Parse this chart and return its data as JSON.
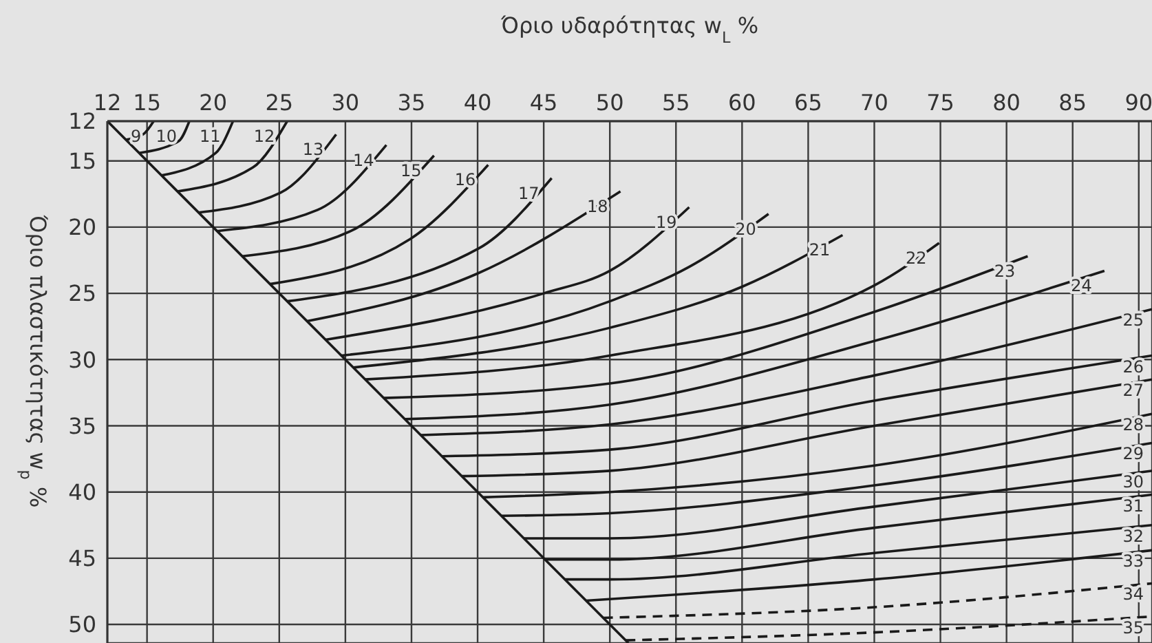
{
  "chart_data": {
    "type": "line",
    "xlabel": "Όριο υδαρότητας w$_{L}$ %",
    "ylabel": "Όριο πλαστικότητας w$_{p}$ %",
    "xlim": [
      12,
      91
    ],
    "xticks": [
      12,
      15,
      20,
      25,
      30,
      35,
      40,
      45,
      50,
      55,
      60,
      65,
      70,
      75,
      80,
      85,
      90
    ],
    "ylim": [
      51.4,
      12
    ],
    "yticks": [
      12,
      15,
      20,
      25,
      30,
      35,
      40,
      45,
      50
    ],
    "grid": true,
    "legend": false,
    "marker": "none",
    "line_style": "solid",
    "series": [
      {
        "color": "#1a1a1a",
        "x": [
          12,
          51.4
        ],
        "values": [
          12,
          51.4
        ]
      },
      {
        "name": "9",
        "color": "#1a1a1a",
        "x": [
          13.4,
          14.7,
          15.5
        ],
        "values": [
          13.4,
          13.0,
          12
        ]
      },
      {
        "name": "10",
        "color": "#1a1a1a",
        "x": [
          14.4,
          17.4,
          18.2
        ],
        "values": [
          14.4,
          13.5,
          12
        ]
      },
      {
        "name": "11",
        "color": "#1a1a1a",
        "x": [
          16.1,
          20.2,
          21.5
        ],
        "values": [
          16.1,
          14.4,
          12
        ]
      },
      {
        "name": "12",
        "color": "#1a1a1a",
        "x": [
          17.3,
          23.0,
          25.6
        ],
        "values": [
          17.3,
          15.5,
          12
        ]
      },
      {
        "name": "13",
        "color": "#1a1a1a",
        "x": [
          18.9,
          25.1,
          29.3
        ],
        "values": [
          18.9,
          17.4,
          13.0
        ]
      },
      {
        "name": "14",
        "color": "#1a1a1a",
        "x": [
          20.3,
          27.9,
          33.1
        ],
        "values": [
          20.3,
          18.7,
          13.8
        ]
      },
      {
        "name": "15",
        "color": "#1a1a1a",
        "x": [
          22.2,
          30.4,
          36.7
        ],
        "values": [
          22.2,
          20.3,
          14.6
        ]
      },
      {
        "name": "16",
        "color": "#1a1a1a",
        "x": [
          24.3,
          34.9,
          40.8
        ],
        "values": [
          24.3,
          20.9,
          15.3
        ]
      },
      {
        "name": "17",
        "color": "#1a1a1a",
        "x": [
          25.6,
          40.1,
          45.6
        ],
        "values": [
          25.6,
          21.6,
          16.3
        ]
      },
      {
        "name": "18",
        "color": "#1a1a1a",
        "x": [
          27.1,
          40,
          50.8
        ],
        "values": [
          27.1,
          23.5,
          17.3
        ]
      },
      {
        "name": "19",
        "color": "#1a1a1a",
        "x": [
          28.5,
          45,
          50,
          56
        ],
        "values": [
          28.5,
          25.0,
          23.3,
          18.5
        ]
      },
      {
        "name": "20",
        "color": "#1a1a1a",
        "x": [
          29.7,
          50,
          56,
          62
        ],
        "values": [
          29.7,
          25.6,
          23.0,
          19.0
        ]
      },
      {
        "name": "21",
        "color": "#1a1a1a",
        "x": [
          30.6,
          50,
          60,
          67.6
        ],
        "values": [
          30.6,
          27.6,
          24.5,
          20.6
        ]
      },
      {
        "name": "22",
        "color": "#1a1a1a",
        "x": [
          31.5,
          50,
          70,
          74.9
        ],
        "values": [
          31.5,
          29.7,
          24.4,
          21.2
        ]
      },
      {
        "name": "23",
        "color": "#1a1a1a",
        "x": [
          32.9,
          50,
          70,
          81.6
        ],
        "values": [
          32.9,
          31.8,
          26.4,
          22.2
        ]
      },
      {
        "name": "24",
        "color": "#1a1a1a",
        "x": [
          34.5,
          50,
          70,
          87.4
        ],
        "values": [
          34.5,
          33.4,
          28.6,
          23.3
        ]
      },
      {
        "name": "25",
        "color": "#1a1a1a",
        "x": [
          35.7,
          50,
          70,
          91
        ],
        "values": [
          35.7,
          34.9,
          31.2,
          26.2
        ]
      },
      {
        "name": "26",
        "color": "#1a1a1a",
        "x": [
          37.3,
          50,
          70,
          91
        ],
        "values": [
          37.3,
          36.8,
          33.1,
          29.7
        ]
      },
      {
        "name": "27",
        "color": "#1a1a1a",
        "x": [
          38.8,
          50,
          70,
          91
        ],
        "values": [
          38.8,
          38.4,
          35.0,
          31.5
        ]
      },
      {
        "name": "28",
        "color": "#1a1a1a",
        "x": [
          40.4,
          50,
          70,
          91
        ],
        "values": [
          40.4,
          40.0,
          38.0,
          34.1
        ]
      },
      {
        "name": "29",
        "color": "#1a1a1a",
        "x": [
          41.8,
          50,
          70,
          91
        ],
        "values": [
          41.8,
          41.6,
          39.5,
          36.3
        ]
      },
      {
        "name": "30",
        "color": "#1a1a1a",
        "x": [
          43.5,
          50,
          70,
          91
        ],
        "values": [
          43.5,
          43.5,
          41.1,
          38.4
        ]
      },
      {
        "name": "31",
        "color": "#1a1a1a",
        "x": [
          45.1,
          50,
          70,
          91
        ],
        "values": [
          45.1,
          45.1,
          42.7,
          40.2
        ]
      },
      {
        "name": "32",
        "color": "#1a1a1a",
        "x": [
          46.6,
          50,
          70,
          91
        ],
        "values": [
          46.6,
          46.6,
          44.6,
          42.5
        ]
      },
      {
        "name": "33",
        "color": "#1a1a1a",
        "x": [
          48.2,
          70,
          91
        ],
        "values": [
          48.2,
          46.6,
          44.4
        ]
      },
      {
        "name": "34",
        "color": "#1a1a1a",
        "line_style": "dashed",
        "x": [
          49.5,
          70,
          91
        ],
        "values": [
          49.5,
          48.7,
          46.9
        ]
      },
      {
        "name": "35",
        "color": "#1a1a1a",
        "line_style": "dashed",
        "x": [
          51.2,
          70,
          91
        ],
        "values": [
          51.2,
          50.6,
          49.4
        ]
      }
    ]
  }
}
